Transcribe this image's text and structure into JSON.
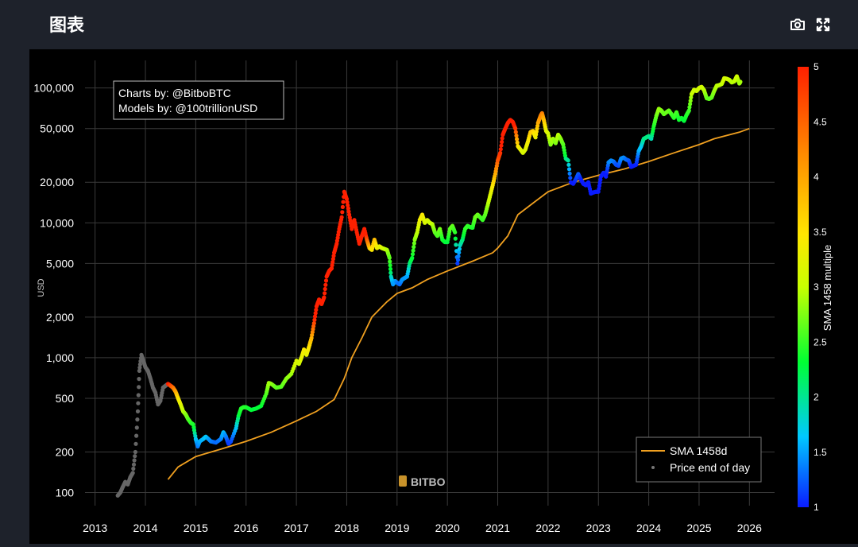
{
  "header": {
    "title": "图表",
    "camera_icon": "camera-icon",
    "fullscreen_icon": "expand-icon"
  },
  "chart_data": {
    "type": "scatter",
    "title": "",
    "xlabel": "",
    "ylabel": "USD",
    "y_scale": "log",
    "ylim": [
      80,
      160000
    ],
    "xlim": [
      2012.8,
      2026.5
    ],
    "x_ticks": [
      "2013",
      "2014",
      "2015",
      "2016",
      "2017",
      "2018",
      "2019",
      "2020",
      "2021",
      "2022",
      "2023",
      "2024",
      "2025",
      "2026"
    ],
    "y_ticks": [
      {
        "v": 100,
        "label": "100"
      },
      {
        "v": 200,
        "label": "200"
      },
      {
        "v": 500,
        "label": "500"
      },
      {
        "v": 1000,
        "label": "1,000"
      },
      {
        "v": 2000,
        "label": "2,000"
      },
      {
        "v": 5000,
        "label": "5,000"
      },
      {
        "v": 10000,
        "label": "10,000"
      },
      {
        "v": 20000,
        "label": "20,000"
      },
      {
        "v": 50000,
        "label": "50,000"
      },
      {
        "v": 100000,
        "label": "100,000"
      }
    ],
    "grid": true,
    "annotation": [
      "Charts by: @BitboBTC",
      "Models by: @100trillionUSD"
    ],
    "watermark": "BITBO",
    "legend": {
      "placement": "bottom-right",
      "entries": [
        {
          "name": "SMA 1458d",
          "type": "line",
          "color": "#f0a020"
        },
        {
          "name": "Price end of day",
          "type": "marker",
          "color": "#777777"
        }
      ]
    },
    "colorbar": {
      "title": "SMA 1458 multiple",
      "range": [
        1,
        5
      ],
      "ticks": [
        "1",
        "1.5",
        "2",
        "2.5",
        "3",
        "3.5",
        "4",
        "4.5",
        "5"
      ],
      "colors": [
        "#0a1cff",
        "#00c8ff",
        "#00ff33",
        "#c8ff00",
        "#ffe600",
        "#ff8c00",
        "#ff2000"
      ]
    },
    "series": [
      {
        "name": "SMA 1458d",
        "type": "line",
        "color": "#f0a020",
        "points": [
          [
            2014.45,
            125
          ],
          [
            2014.65,
            155
          ],
          [
            2015.0,
            185
          ],
          [
            2015.5,
            210
          ],
          [
            2016.0,
            240
          ],
          [
            2016.5,
            280
          ],
          [
            2017.0,
            340
          ],
          [
            2017.4,
            400
          ],
          [
            2017.75,
            490
          ],
          [
            2017.95,
            700
          ],
          [
            2018.1,
            1000
          ],
          [
            2018.3,
            1400
          ],
          [
            2018.5,
            2000
          ],
          [
            2018.8,
            2600
          ],
          [
            2019.0,
            3000
          ],
          [
            2019.3,
            3300
          ],
          [
            2019.6,
            3800
          ],
          [
            2020.0,
            4400
          ],
          [
            2020.5,
            5200
          ],
          [
            2020.9,
            6000
          ],
          [
            2021.0,
            6500
          ],
          [
            2021.2,
            8000
          ],
          [
            2021.4,
            11500
          ],
          [
            2021.7,
            14000
          ],
          [
            2022.0,
            17000
          ],
          [
            2022.5,
            20000
          ],
          [
            2023.0,
            22500
          ],
          [
            2023.5,
            25000
          ],
          [
            2024.0,
            28500
          ],
          [
            2024.5,
            33000
          ],
          [
            2025.0,
            38000
          ],
          [
            2025.3,
            42000
          ],
          [
            2025.8,
            47000
          ],
          [
            2026.0,
            50000
          ]
        ]
      },
      {
        "name": "Price end of day",
        "type": "scatter",
        "pre_sma_color": "#666666",
        "points": [
          [
            2013.45,
            95
          ],
          [
            2013.5,
            100
          ],
          [
            2013.55,
            110
          ],
          [
            2013.6,
            120
          ],
          [
            2013.65,
            115
          ],
          [
            2013.7,
            130
          ],
          [
            2013.75,
            140
          ],
          [
            2013.8,
            200
          ],
          [
            2013.85,
            400
          ],
          [
            2013.88,
            800
          ],
          [
            2013.92,
            1050
          ],
          [
            2013.96,
            950
          ],
          [
            2014.0,
            850
          ],
          [
            2014.05,
            800
          ],
          [
            2014.1,
            700
          ],
          [
            2014.15,
            600
          ],
          [
            2014.2,
            550
          ],
          [
            2014.25,
            450
          ],
          [
            2014.3,
            480
          ],
          [
            2014.35,
            600
          ],
          [
            2014.4,
            620
          ],
          [
            2014.45,
            640
          ],
          [
            2014.5,
            620
          ],
          [
            2014.55,
            600
          ],
          [
            2014.6,
            560
          ],
          [
            2014.65,
            500
          ],
          [
            2014.7,
            450
          ],
          [
            2014.75,
            400
          ],
          [
            2014.8,
            380
          ],
          [
            2014.85,
            350
          ],
          [
            2014.9,
            330
          ],
          [
            2014.95,
            320
          ],
          [
            2015.0,
            250
          ],
          [
            2015.04,
            220
          ],
          [
            2015.08,
            240
          ],
          [
            2015.15,
            250
          ],
          [
            2015.2,
            260
          ],
          [
            2015.3,
            240
          ],
          [
            2015.4,
            235
          ],
          [
            2015.5,
            250
          ],
          [
            2015.55,
            280
          ],
          [
            2015.6,
            260
          ],
          [
            2015.65,
            230
          ],
          [
            2015.7,
            240
          ],
          [
            2015.8,
            300
          ],
          [
            2015.85,
            370
          ],
          [
            2015.9,
            420
          ],
          [
            2015.95,
            430
          ],
          [
            2016.0,
            430
          ],
          [
            2016.1,
            410
          ],
          [
            2016.2,
            420
          ],
          [
            2016.3,
            440
          ],
          [
            2016.4,
            540
          ],
          [
            2016.45,
            650
          ],
          [
            2016.5,
            640
          ],
          [
            2016.6,
            600
          ],
          [
            2016.7,
            610
          ],
          [
            2016.8,
            700
          ],
          [
            2016.9,
            760
          ],
          [
            2017.0,
            950
          ],
          [
            2017.05,
            900
          ],
          [
            2017.1,
            1000
          ],
          [
            2017.15,
            1150
          ],
          [
            2017.2,
            1050
          ],
          [
            2017.25,
            1200
          ],
          [
            2017.3,
            1400
          ],
          [
            2017.35,
            1800
          ],
          [
            2017.4,
            2400
          ],
          [
            2017.45,
            2700
          ],
          [
            2017.5,
            2500
          ],
          [
            2017.55,
            2800
          ],
          [
            2017.6,
            4000
          ],
          [
            2017.65,
            4400
          ],
          [
            2017.7,
            4600
          ],
          [
            2017.75,
            6000
          ],
          [
            2017.8,
            7000
          ],
          [
            2017.85,
            9000
          ],
          [
            2017.9,
            11000
          ],
          [
            2017.95,
            17000
          ],
          [
            2018.0,
            15000
          ],
          [
            2018.05,
            11500
          ],
          [
            2018.1,
            9000
          ],
          [
            2018.15,
            10500
          ],
          [
            2018.2,
            8500
          ],
          [
            2018.25,
            7000
          ],
          [
            2018.3,
            8000
          ],
          [
            2018.35,
            9000
          ],
          [
            2018.4,
            7500
          ],
          [
            2018.45,
            6500
          ],
          [
            2018.5,
            6300
          ],
          [
            2018.55,
            7500
          ],
          [
            2018.6,
            6500
          ],
          [
            2018.65,
            6700
          ],
          [
            2018.7,
            6500
          ],
          [
            2018.75,
            6400
          ],
          [
            2018.8,
            6300
          ],
          [
            2018.85,
            5500
          ],
          [
            2018.88,
            4000
          ],
          [
            2018.92,
            3500
          ],
          [
            2018.96,
            3700
          ],
          [
            2019.0,
            3600
          ],
          [
            2019.05,
            3500
          ],
          [
            2019.1,
            3800
          ],
          [
            2019.15,
            3900
          ],
          [
            2019.2,
            4000
          ],
          [
            2019.25,
            5000
          ],
          [
            2019.3,
            5500
          ],
          [
            2019.35,
            7500
          ],
          [
            2019.4,
            8500
          ],
          [
            2019.45,
            10500
          ],
          [
            2019.5,
            11500
          ],
          [
            2019.55,
            10000
          ],
          [
            2019.6,
            10500
          ],
          [
            2019.65,
            10000
          ],
          [
            2019.7,
            9800
          ],
          [
            2019.75,
            8500
          ],
          [
            2019.8,
            8000
          ],
          [
            2019.85,
            9000
          ],
          [
            2019.9,
            7500
          ],
          [
            2019.95,
            7200
          ],
          [
            2020.0,
            7200
          ],
          [
            2020.05,
            9000
          ],
          [
            2020.1,
            9500
          ],
          [
            2020.15,
            8500
          ],
          [
            2020.2,
            5000
          ],
          [
            2020.25,
            6800
          ],
          [
            2020.3,
            7500
          ],
          [
            2020.35,
            9000
          ],
          [
            2020.4,
            9500
          ],
          [
            2020.45,
            9300
          ],
          [
            2020.5,
            9200
          ],
          [
            2020.55,
            11000
          ],
          [
            2020.6,
            11500
          ],
          [
            2020.65,
            11000
          ],
          [
            2020.7,
            10500
          ],
          [
            2020.75,
            11500
          ],
          [
            2020.8,
            13500
          ],
          [
            2020.85,
            16000
          ],
          [
            2020.9,
            19000
          ],
          [
            2020.95,
            23000
          ],
          [
            2021.0,
            29000
          ],
          [
            2021.05,
            33000
          ],
          [
            2021.1,
            45000
          ],
          [
            2021.15,
            50000
          ],
          [
            2021.2,
            55000
          ],
          [
            2021.25,
            58000
          ],
          [
            2021.3,
            56000
          ],
          [
            2021.35,
            50000
          ],
          [
            2021.4,
            37000
          ],
          [
            2021.45,
            35000
          ],
          [
            2021.5,
            33000
          ],
          [
            2021.55,
            35000
          ],
          [
            2021.6,
            40000
          ],
          [
            2021.65,
            47000
          ],
          [
            2021.7,
            48000
          ],
          [
            2021.75,
            43000
          ],
          [
            2021.8,
            55000
          ],
          [
            2021.85,
            62000
          ],
          [
            2021.88,
            65000
          ],
          [
            2021.92,
            57000
          ],
          [
            2021.96,
            48000
          ],
          [
            2022.0,
            46000
          ],
          [
            2022.05,
            38000
          ],
          [
            2022.1,
            42000
          ],
          [
            2022.15,
            39000
          ],
          [
            2022.2,
            45000
          ],
          [
            2022.25,
            42000
          ],
          [
            2022.3,
            38000
          ],
          [
            2022.35,
            30000
          ],
          [
            2022.4,
            29000
          ],
          [
            2022.45,
            20000
          ],
          [
            2022.5,
            19500
          ],
          [
            2022.55,
            21000
          ],
          [
            2022.6,
            23000
          ],
          [
            2022.65,
            21000
          ],
          [
            2022.7,
            19500
          ],
          [
            2022.75,
            19000
          ],
          [
            2022.8,
            20000
          ],
          [
            2022.85,
            16500
          ],
          [
            2022.9,
            16800
          ],
          [
            2022.95,
            17000
          ],
          [
            2023.0,
            17000
          ],
          [
            2023.05,
            22000
          ],
          [
            2023.1,
            23500
          ],
          [
            2023.15,
            22000
          ],
          [
            2023.2,
            28000
          ],
          [
            2023.25,
            29000
          ],
          [
            2023.3,
            28500
          ],
          [
            2023.35,
            27000
          ],
          [
            2023.4,
            26500
          ],
          [
            2023.45,
            30000
          ],
          [
            2023.5,
            30500
          ],
          [
            2023.55,
            29500
          ],
          [
            2023.6,
            29000
          ],
          [
            2023.65,
            26000
          ],
          [
            2023.7,
            26500
          ],
          [
            2023.75,
            27000
          ],
          [
            2023.8,
            34000
          ],
          [
            2023.85,
            37000
          ],
          [
            2023.9,
            42000
          ],
          [
            2023.95,
            43000
          ],
          [
            2024.0,
            44000
          ],
          [
            2024.05,
            42000
          ],
          [
            2024.1,
            52000
          ],
          [
            2024.15,
            62000
          ],
          [
            2024.2,
            70000
          ],
          [
            2024.25,
            68000
          ],
          [
            2024.3,
            64000
          ],
          [
            2024.35,
            66000
          ],
          [
            2024.4,
            68000
          ],
          [
            2024.45,
            64000
          ],
          [
            2024.5,
            60000
          ],
          [
            2024.55,
            66000
          ],
          [
            2024.6,
            58000
          ],
          [
            2024.65,
            60000
          ],
          [
            2024.7,
            57000
          ],
          [
            2024.75,
            63000
          ],
          [
            2024.8,
            68000
          ],
          [
            2024.85,
            90000
          ],
          [
            2024.9,
            97000
          ],
          [
            2024.95,
            95000
          ],
          [
            2025.0,
            100000
          ],
          [
            2025.05,
            102000
          ],
          [
            2025.1,
            96000
          ],
          [
            2025.15,
            84000
          ],
          [
            2025.2,
            83000
          ],
          [
            2025.25,
            85000
          ],
          [
            2025.3,
            95000
          ],
          [
            2025.35,
            104000
          ],
          [
            2025.4,
            105000
          ],
          [
            2025.45,
            107000
          ],
          [
            2025.5,
            118000
          ],
          [
            2025.55,
            117000
          ],
          [
            2025.6,
            115000
          ],
          [
            2025.65,
            110000
          ],
          [
            2025.7,
            112000
          ],
          [
            2025.75,
            122000
          ],
          [
            2025.8,
            108000
          ],
          [
            2025.82,
            111000
          ]
        ]
      }
    ]
  }
}
